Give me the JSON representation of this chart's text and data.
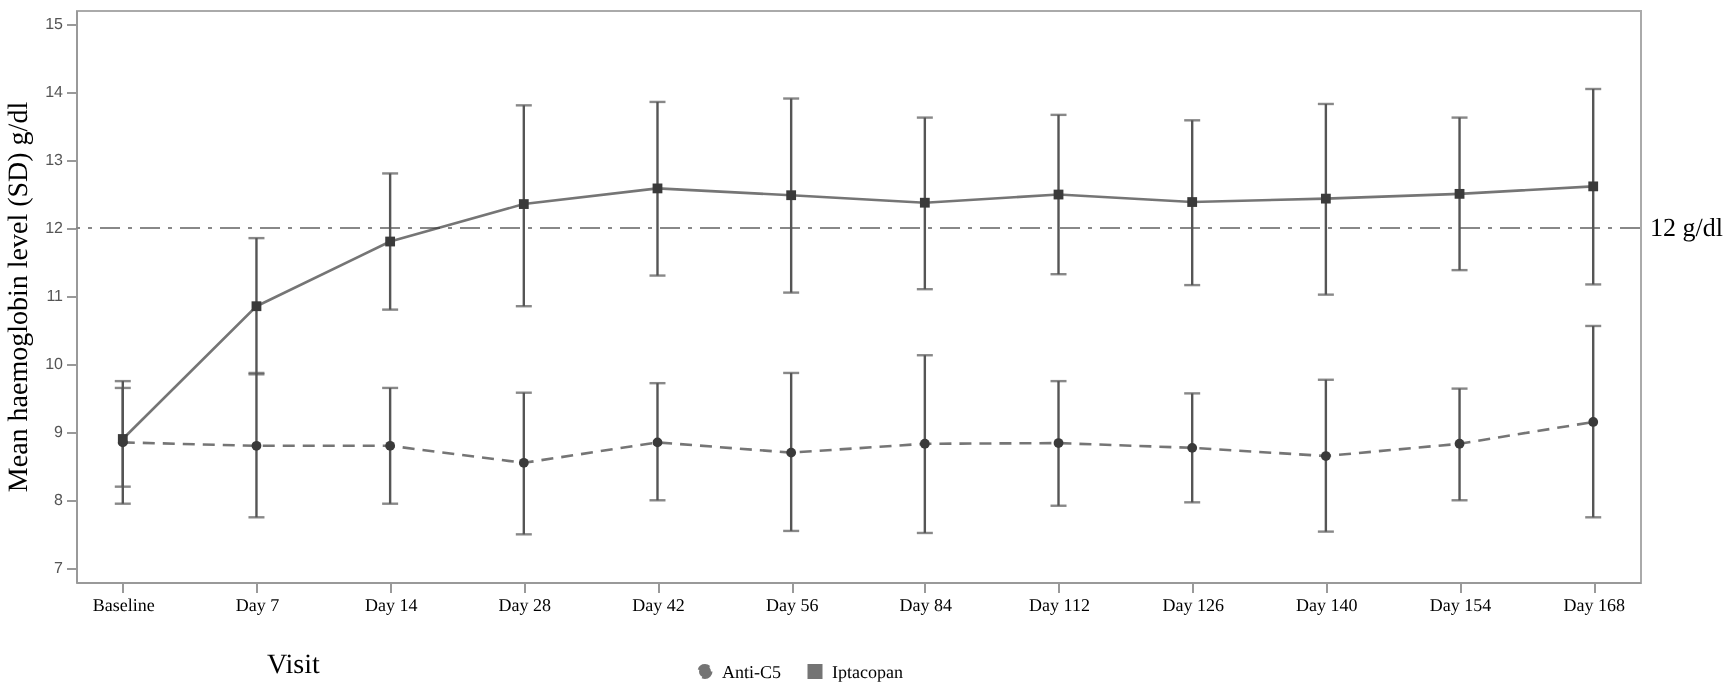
{
  "chart_data": {
    "type": "line",
    "xlabel": "Visit",
    "ylabel": "Mean haemoglobin level (SD) g/dl",
    "categories": [
      "Baseline",
      "Day 7",
      "Day 14",
      "Day 28",
      "Day 42",
      "Day 56",
      "Day 84",
      "Day 112",
      "Day 126",
      "Day 140",
      "Day 154",
      "Day 168"
    ],
    "ylim": [
      6.8,
      15.2
    ],
    "yticks": [
      7,
      8,
      9,
      10,
      11,
      12,
      13,
      14,
      15
    ],
    "series": [
      {
        "name": "Anti-C5",
        "color": "#3a3a3a",
        "marker": "circle",
        "line_style": "dashed",
        "values": [
          8.85,
          8.8,
          8.8,
          8.55,
          8.85,
          8.7,
          8.83,
          8.84,
          8.77,
          8.65,
          8.83,
          9.15
        ],
        "errors": [
          [
            7.95,
            9.75
          ],
          [
            7.75,
            9.87
          ],
          [
            7.95,
            9.65
          ],
          [
            7.5,
            9.58
          ],
          [
            8.0,
            9.72
          ],
          [
            7.55,
            9.87
          ],
          [
            7.52,
            10.13
          ],
          [
            7.92,
            9.75
          ],
          [
            7.97,
            9.57
          ],
          [
            7.54,
            9.77
          ],
          [
            8.0,
            9.64
          ],
          [
            7.75,
            10.56
          ]
        ]
      },
      {
        "name": "Iptacopan",
        "color": "#3a3a3a",
        "marker": "square",
        "line_style": "solid",
        "values": [
          8.9,
          10.85,
          11.8,
          12.35,
          12.58,
          12.48,
          12.37,
          12.49,
          12.38,
          12.43,
          12.5,
          12.61
        ],
        "errors": [
          [
            8.2,
            9.65
          ],
          [
            9.85,
            11.85
          ],
          [
            10.8,
            12.8
          ],
          [
            10.85,
            13.8
          ],
          [
            11.3,
            13.85
          ],
          [
            11.05,
            13.9
          ],
          [
            11.1,
            13.62
          ],
          [
            11.32,
            13.66
          ],
          [
            11.16,
            13.58
          ],
          [
            11.02,
            13.82
          ],
          [
            11.38,
            13.62
          ],
          [
            11.17,
            14.04
          ]
        ]
      }
    ],
    "ref_lines": [
      {
        "axis": "y",
        "value": 12,
        "label": "12 g/dl",
        "color": "#888888",
        "line_style": "dashdot"
      }
    ],
    "grid": false,
    "legend": "bottom"
  }
}
